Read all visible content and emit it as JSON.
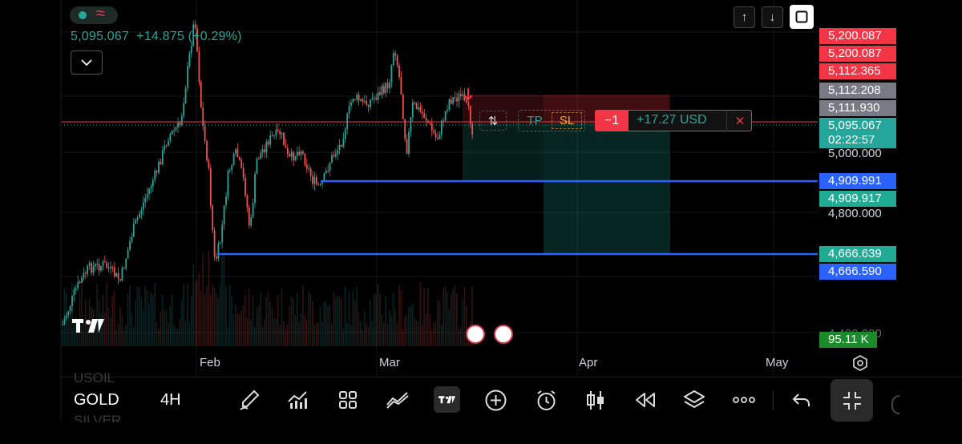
{
  "symbol_header": {
    "price": "5,095.067",
    "change": "+14.875",
    "change_pct": "(+0.29%)",
    "status_color": "#26a69a",
    "wave_glyph": "≈"
  },
  "top_buttons": {
    "scroll_up": "↑",
    "scroll_down": "↓"
  },
  "price_scale": {
    "labels": [
      {
        "text": "5,200.087",
        "bg": "#f23645"
      },
      {
        "text": "5,200.087",
        "bg": "#f23645"
      },
      {
        "text": "5,112.365",
        "bg": "#f23645"
      },
      {
        "text": "5,112.208",
        "bg": "#787b86"
      },
      {
        "text": "5,111.930",
        "bg": "#787b86"
      },
      {
        "text": "5,095.067",
        "bg": "#26a69a"
      },
      {
        "text": "02:22:57",
        "bg": "#26a69a"
      },
      {
        "text": "4,909.991",
        "bg": "#2962ff"
      },
      {
        "text": "4,909.917",
        "bg": "#22ab94"
      },
      {
        "text": "4,666.639",
        "bg": "#22ab94"
      },
      {
        "text": "4,666.590",
        "bg": "#2962ff"
      },
      {
        "text": "95.11 K",
        "bg": "#1b8a2a"
      }
    ],
    "ticks": [
      "5,000.000",
      "4,800.000",
      "4,400.000"
    ]
  },
  "trade_bar": {
    "tp": "TP",
    "sl": "SL",
    "qty": "−1",
    "pnl": "+17.27 USD",
    "close": "✕",
    "reverse": "⇅"
  },
  "time_axis": [
    "Feb",
    "Mar",
    "Apr",
    "May"
  ],
  "bottom_toolbar": {
    "symbol_prev": "USOIL",
    "symbol": "GOLD",
    "symbol_next": "SILVER",
    "interval": "4H"
  },
  "logo_text": "TV",
  "colors": {
    "up": "#26a69a",
    "down": "#ef5350",
    "line": "#2962ff"
  }
}
